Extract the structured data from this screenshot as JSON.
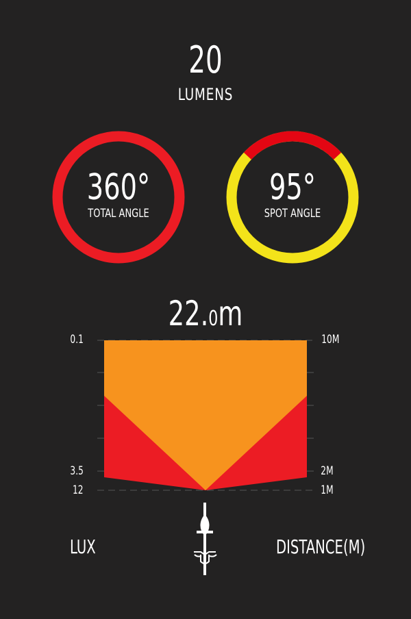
{
  "lumens": {
    "value": "20",
    "label": "LUMENS"
  },
  "total_angle": {
    "value": "360°",
    "label": "TOTAL ANGLE",
    "degrees": 360,
    "color": "#ec1c24"
  },
  "spot_angle": {
    "value": "95°",
    "label": "SPOT ANGLE",
    "degrees": 95,
    "spot_color": "#e30613",
    "ring_color": "#f3e31a"
  },
  "distance": {
    "main": "22.",
    "decimal": "0",
    "unit": "m"
  },
  "chart_data": {
    "type": "area",
    "left_axis": {
      "title": "LUX",
      "ticks": [
        "0.1",
        "3.5",
        "12"
      ]
    },
    "right_axis": {
      "title": "DISTANCE(M)",
      "ticks": [
        "10M",
        "2M",
        "1M"
      ]
    },
    "colors": {
      "spot": "#f7931e",
      "flood": "#ec1c24"
    }
  },
  "icons": {
    "bike": "bicycle-top-view-icon"
  }
}
